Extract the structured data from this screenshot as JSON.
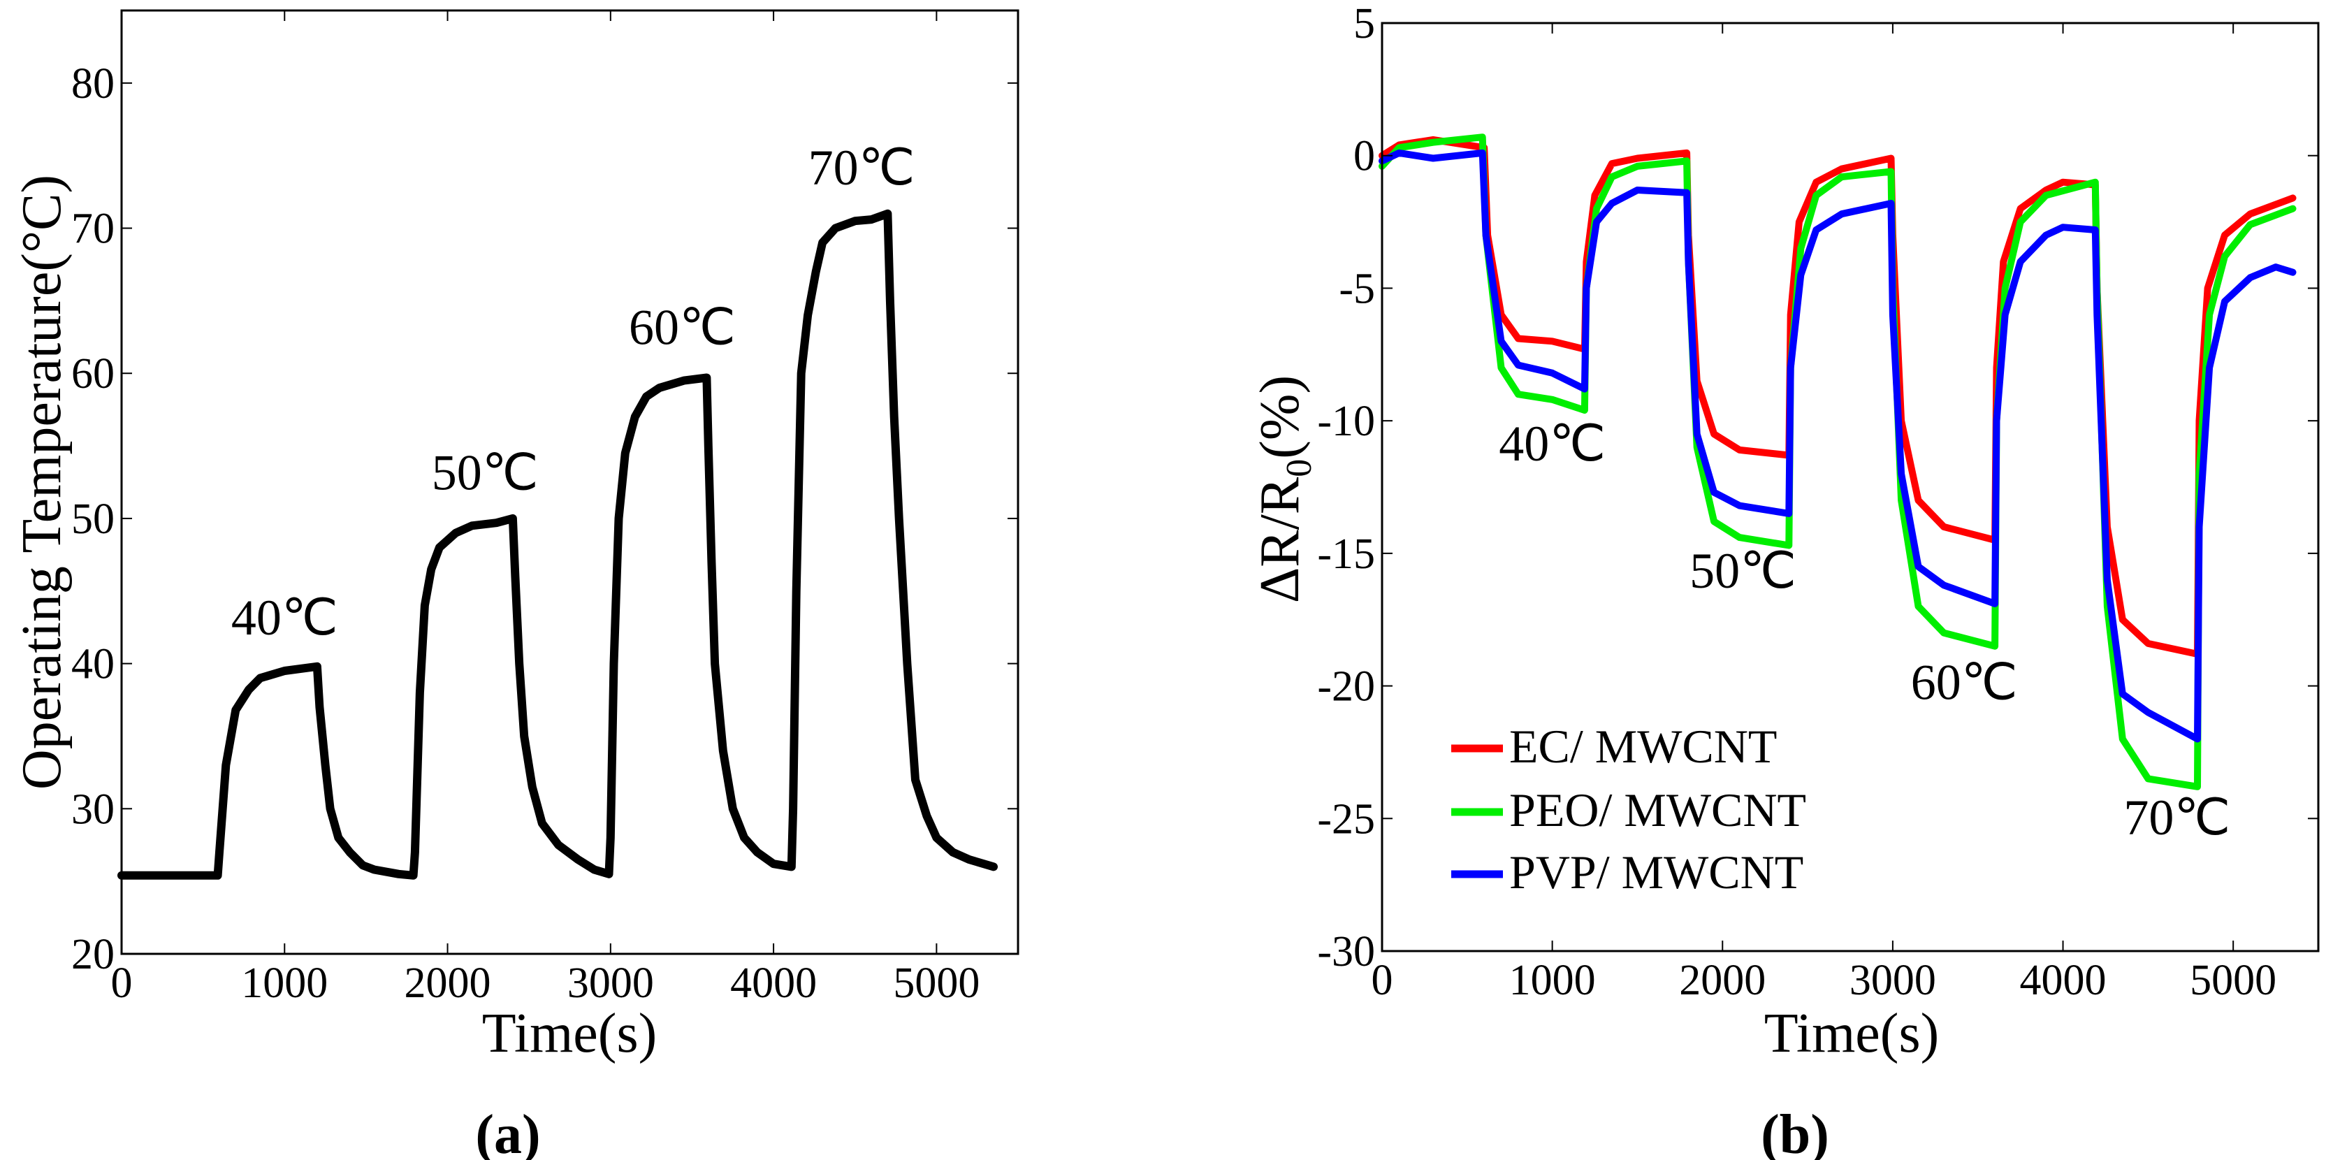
{
  "chart_data": [
    {
      "type": "line",
      "panel_label": "(a)",
      "title": "",
      "xlabel": "Time(s)",
      "ylabel": "Operating Temperature(°C)",
      "xlim": [
        0,
        5500
      ],
      "ylim": [
        20,
        85
      ],
      "xticks": [
        0,
        1000,
        2000,
        3000,
        4000,
        5000
      ],
      "yticks": [
        20,
        30,
        40,
        50,
        60,
        70,
        80
      ],
      "grid": false,
      "annotations": [
        {
          "text": "40℃",
          "x": 1000,
          "y": 42
        },
        {
          "text": "50℃",
          "x": 2230,
          "y": 52
        },
        {
          "text": "60℃",
          "x": 3440,
          "y": 62
        },
        {
          "text": "70℃",
          "x": 4540,
          "y": 73
        }
      ],
      "series": [
        {
          "name": "Operating Temperature",
          "color": "#000000",
          "x": [
            0,
            300,
            590,
            600,
            640,
            700,
            780,
            850,
            1000,
            1200,
            1215,
            1250,
            1280,
            1330,
            1400,
            1480,
            1550,
            1700,
            1790,
            1800,
            1830,
            1860,
            1900,
            1950,
            2050,
            2150,
            2300,
            2400,
            2415,
            2440,
            2470,
            2520,
            2580,
            2680,
            2800,
            2900,
            2990,
            3000,
            3020,
            3050,
            3090,
            3150,
            3220,
            3300,
            3450,
            3590,
            3600,
            3620,
            3640,
            3690,
            3750,
            3820,
            3900,
            4000,
            4110,
            4120,
            4140,
            4170,
            4210,
            4260,
            4300,
            4380,
            4500,
            4600,
            4700,
            4715,
            4740,
            4770,
            4820,
            4870,
            4940,
            5000,
            5100,
            5200,
            5350
          ],
          "y": [
            25.4,
            25.4,
            25.4,
            27,
            33,
            36.8,
            38.2,
            39,
            39.5,
            39.8,
            37,
            33,
            30,
            28,
            27,
            26.1,
            25.8,
            25.5,
            25.4,
            27,
            38,
            44,
            46.5,
            48,
            49,
            49.5,
            49.7,
            50,
            46,
            40,
            35,
            31.5,
            29,
            27.5,
            26.5,
            25.8,
            25.5,
            28,
            40,
            50,
            54.5,
            57,
            58.4,
            59,
            59.5,
            59.7,
            55,
            47,
            40,
            34,
            30,
            28,
            27,
            26.2,
            26,
            30,
            45,
            60,
            64,
            67,
            69,
            70,
            70.5,
            70.6,
            71,
            65,
            57,
            50,
            40,
            32,
            29.5,
            28,
            27,
            26.5,
            26
          ]
        }
      ]
    },
    {
      "type": "line",
      "panel_label": "(b)",
      "title": "",
      "xlabel": "Time(s)",
      "ylabel": "ΔR/R",
      "ylabel_sub": "0",
      "ylabel_suffix": "(%)",
      "xlim": [
        0,
        5500
      ],
      "ylim": [
        -30,
        5
      ],
      "xticks": [
        0,
        1000,
        2000,
        3000,
        4000,
        5000
      ],
      "yticks": [
        -30,
        -25,
        -20,
        -15,
        -10,
        -5,
        0,
        5
      ],
      "grid": false,
      "legend_placement": "lower-left",
      "annotations": [
        {
          "text": "40℃",
          "x": 1000,
          "y": -11.5
        },
        {
          "text": "50℃",
          "x": 2120,
          "y": -16.3
        },
        {
          "text": "60℃",
          "x": 3420,
          "y": -20.5
        },
        {
          "text": "70℃",
          "x": 4670,
          "y": -25.6
        }
      ],
      "series": [
        {
          "name": "EC/ MWCNT",
          "color": "#ff0000",
          "x": [
            0,
            100,
            300,
            600,
            620,
            700,
            800,
            1000,
            1190,
            1200,
            1250,
            1350,
            1500,
            1790,
            1800,
            1850,
            1950,
            2100,
            2390,
            2400,
            2450,
            2550,
            2700,
            2990,
            3000,
            3050,
            3150,
            3300,
            3600,
            3610,
            3650,
            3750,
            3900,
            4000,
            4190,
            4200,
            4260,
            4350,
            4500,
            4790,
            4800,
            4850,
            4950,
            5100,
            5350
          ],
          "y": [
            0,
            0.4,
            0.6,
            0.3,
            -3,
            -6,
            -6.9,
            -7.0,
            -7.3,
            -4,
            -1.5,
            -0.3,
            -0.1,
            0.1,
            -3,
            -8.5,
            -10.5,
            -11.1,
            -11.3,
            -6,
            -2.5,
            -1,
            -0.5,
            -0.1,
            -3,
            -10,
            -13,
            -14,
            -14.5,
            -8,
            -4,
            -2,
            -1.3,
            -1.0,
            -1.1,
            -5,
            -14,
            -17.5,
            -18.4,
            -18.8,
            -10,
            -5,
            -3,
            -2.2,
            -1.6
          ]
        },
        {
          "name": "PEO/ MWCNT",
          "color": "#00ee00",
          "x": [
            0,
            100,
            300,
            590,
            610,
            700,
            800,
            1000,
            1190,
            1200,
            1260,
            1350,
            1500,
            1790,
            1800,
            1850,
            1950,
            2100,
            2390,
            2400,
            2460,
            2550,
            2700,
            2990,
            3000,
            3050,
            3150,
            3300,
            3600,
            3610,
            3660,
            3750,
            3900,
            4190,
            4200,
            4260,
            4350,
            4500,
            4790,
            4800,
            4860,
            4950,
            5100,
            5350
          ],
          "y": [
            -0.4,
            0.3,
            0.5,
            0.7,
            -3,
            -8,
            -9,
            -9.2,
            -9.6,
            -5,
            -2,
            -0.8,
            -0.4,
            -0.2,
            -4,
            -11,
            -13.8,
            -14.4,
            -14.7,
            -8,
            -3.5,
            -1.5,
            -0.8,
            -0.6,
            -5,
            -13,
            -17,
            -18,
            -18.5,
            -10,
            -5,
            -2.5,
            -1.5,
            -1.0,
            -5,
            -17,
            -22,
            -23.5,
            -23.8,
            -12,
            -6,
            -3.8,
            -2.6,
            -2.0
          ]
        },
        {
          "name": "PVP/ MWCNT",
          "color": "#0000ff",
          "x": [
            0,
            100,
            300,
            590,
            610,
            700,
            800,
            1000,
            1190,
            1200,
            1260,
            1350,
            1500,
            1790,
            1800,
            1850,
            1950,
            2100,
            2390,
            2400,
            2460,
            2550,
            2700,
            2990,
            3000,
            3050,
            3150,
            3300,
            3600,
            3610,
            3660,
            3750,
            3900,
            4000,
            4190,
            4200,
            4260,
            4350,
            4500,
            4790,
            4800,
            4860,
            4950,
            5100,
            5250,
            5350
          ],
          "y": [
            -0.2,
            0.1,
            -0.1,
            0.1,
            -3,
            -7,
            -7.9,
            -8.2,
            -8.8,
            -5,
            -2.5,
            -1.8,
            -1.3,
            -1.4,
            -4,
            -10.5,
            -12.7,
            -13.2,
            -13.5,
            -8,
            -4.5,
            -2.8,
            -2.2,
            -1.8,
            -6,
            -12,
            -15.5,
            -16.2,
            -16.9,
            -10,
            -6,
            -4,
            -3,
            -2.7,
            -2.8,
            -6,
            -16,
            -20.3,
            -21,
            -22,
            -14,
            -8,
            -5.5,
            -4.6,
            -4.2,
            -4.4
          ]
        }
      ]
    }
  ]
}
